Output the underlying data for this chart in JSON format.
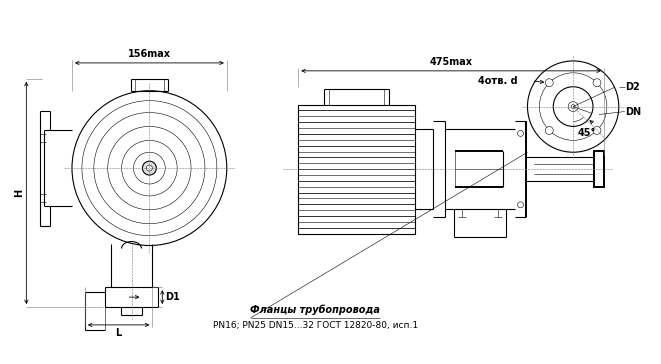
{
  "bg_color": "#ffffff",
  "line_color": "#000000",
  "text_label_156": "156max",
  "text_label_475": "475max",
  "text_H": "H",
  "text_L": "L",
  "text_D1": "D1",
  "text_D2": "D2",
  "text_DN": "DN",
  "text_4otv": "4отв. d",
  "text_45deg": "45°",
  "text_flanges": "Фланцы трубопровода",
  "text_spec": "PN16; PN25 DN15...32 ГОСТ 12820-80, исп.1",
  "font_size_labels": 7,
  "font_size_dims": 7,
  "font_size_text": 7,
  "font_size_spec": 6.5
}
